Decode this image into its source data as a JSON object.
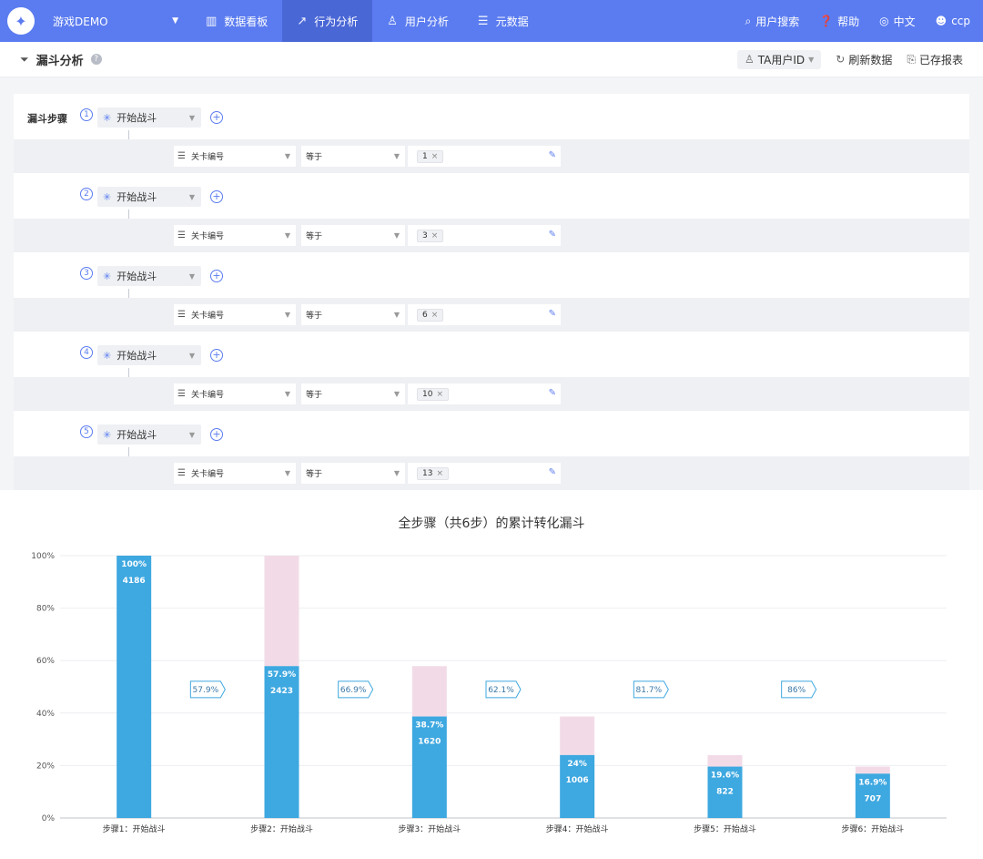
{
  "nav": {
    "project": "游戏DEMO",
    "items": [
      {
        "label": "数据看板",
        "icon": "dashboard-icon",
        "active": false
      },
      {
        "label": "行为分析",
        "icon": "line-chart-icon",
        "active": true
      },
      {
        "label": "用户分析",
        "icon": "user-icon",
        "active": false
      },
      {
        "label": "元数据",
        "icon": "database-icon",
        "active": false
      }
    ],
    "right": {
      "search": "用户搜索",
      "help": "帮助",
      "lang": "中文",
      "user": "ccp"
    }
  },
  "subheader": {
    "title": "漏斗分析",
    "ta_user": "TA用户ID",
    "refresh": "刷新数据",
    "saved": "已存报表"
  },
  "steps_label": "漏斗步骤",
  "steps": [
    {
      "num": "1",
      "event": "开始战斗",
      "prop": "关卡编号",
      "op": "等于",
      "value": "1"
    },
    {
      "num": "2",
      "event": "开始战斗",
      "prop": "关卡编号",
      "op": "等于",
      "value": "3"
    },
    {
      "num": "3",
      "event": "开始战斗",
      "prop": "关卡编号",
      "op": "等于",
      "value": "6"
    },
    {
      "num": "4",
      "event": "开始战斗",
      "prop": "关卡编号",
      "op": "等于",
      "value": "10"
    },
    {
      "num": "5",
      "event": "开始战斗",
      "prop": "关卡编号",
      "op": "等于",
      "value": "13"
    }
  ],
  "chart_data": {
    "type": "bar",
    "title": "全步骤（共6步）的累计转化漏斗",
    "categories": [
      "步骤1：开始战斗",
      "步骤2：开始战斗",
      "步骤3：开始战斗",
      "步骤4：开始战斗",
      "步骤5：开始战斗",
      "步骤6：开始战斗"
    ],
    "series": [
      {
        "values": [
          100,
          57.9,
          38.7,
          24,
          19.6,
          16.9
        ],
        "color": "#3ea8e0"
      },
      {
        "values": [
          0,
          42.1,
          19.2,
          14.7,
          4.4,
          2.7
        ],
        "color": "#f2dbe7"
      }
    ],
    "percent_labels": [
      "100%",
      "57.9%",
      "38.7%",
      "24%",
      "19.6%",
      "16.9%"
    ],
    "counts": [
      "4186",
      "2423",
      "1620",
      "1006",
      "822",
      "707"
    ],
    "step_conversions": [
      "57.9%",
      "66.9%",
      "62.1%",
      "81.7%",
      "86%"
    ],
    "y_ticks": [
      "0%",
      "20%",
      "40%",
      "60%",
      "80%",
      "100%"
    ],
    "ylim": [
      0,
      100
    ],
    "grid": true,
    "legend": "none"
  },
  "colors": {
    "accent": "#5b7cf0",
    "bar": "#3ea8e0",
    "bar_bg": "#f2dbe7"
  }
}
